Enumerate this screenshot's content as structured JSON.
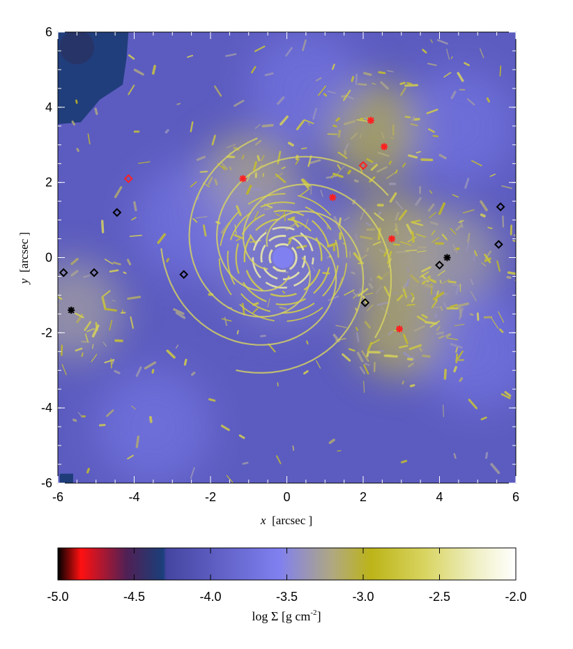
{
  "chart_data": {
    "type": "heatmap",
    "title": "",
    "xlabel": {
      "var": "x",
      "unit": "[arcsec ]"
    },
    "ylabel": {
      "var": "y",
      "unit": "[arcsec ]"
    },
    "xlim": [
      -6,
      6
    ],
    "ylim": [
      -6,
      6
    ],
    "xticks": [
      "-6",
      "-4",
      "-2",
      "0",
      "2",
      "4",
      "6"
    ],
    "yticks": [
      "6",
      "4",
      "2",
      "0",
      "-2",
      "-4",
      "-6"
    ],
    "colorbar": {
      "label": "log Σ [g cm",
      "label_exp": "-2",
      "label_close": "]",
      "range": [
        -5.0,
        -2.0
      ],
      "ticks": [
        "-5.0",
        "-4.5",
        "-4.0",
        "-3.5",
        "-3.0",
        "-2.5",
        "-2.0"
      ],
      "stops": [
        {
          "v": -5.0,
          "color": "#000000"
        },
        {
          "v": -4.85,
          "color": "#ff1010"
        },
        {
          "v": -4.55,
          "color": "#502055"
        },
        {
          "v": -4.31,
          "color": "#1a3f7a"
        },
        {
          "v": -4.29,
          "color": "#4444a0"
        },
        {
          "v": -3.55,
          "color": "#8080f0"
        },
        {
          "v": -3.2,
          "color": "#b0a880"
        },
        {
          "v": -2.95,
          "color": "#bcb418"
        },
        {
          "v": -2.6,
          "color": "#d8d460"
        },
        {
          "v": -2.25,
          "color": "#f0f0c8"
        },
        {
          "v": -2.0,
          "color": "#ffffff"
        }
      ]
    },
    "markers": [
      {
        "kind": "red-asterisk",
        "x": 2.2,
        "y": 3.65
      },
      {
        "kind": "red-asterisk",
        "x": 2.55,
        "y": 2.95
      },
      {
        "kind": "red-asterisk",
        "x": -1.15,
        "y": 2.1
      },
      {
        "kind": "red-asterisk",
        "x": 1.2,
        "y": 1.6
      },
      {
        "kind": "red-asterisk",
        "x": 2.75,
        "y": 0.5
      },
      {
        "kind": "red-asterisk",
        "x": 2.95,
        "y": -1.9
      },
      {
        "kind": "red-diamond",
        "x": -4.15,
        "y": 2.1
      },
      {
        "kind": "red-diamond",
        "x": 2.0,
        "y": 2.45
      },
      {
        "kind": "black-asterisk",
        "x": 4.2,
        "y": 0.0
      },
      {
        "kind": "black-asterisk",
        "x": -5.65,
        "y": -1.4
      },
      {
        "kind": "black-diamond",
        "x": -4.45,
        "y": 1.2
      },
      {
        "kind": "black-diamond",
        "x": -5.85,
        "y": -0.4
      },
      {
        "kind": "black-diamond",
        "x": -5.05,
        "y": -0.4
      },
      {
        "kind": "black-diamond",
        "x": -2.7,
        "y": -0.45
      },
      {
        "kind": "black-diamond",
        "x": 2.05,
        "y": -1.2
      },
      {
        "kind": "black-diamond",
        "x": 4.0,
        "y": -0.2
      },
      {
        "kind": "black-diamond",
        "x": 5.6,
        "y": 1.35
      },
      {
        "kind": "black-diamond",
        "x": 5.55,
        "y": 0.35
      }
    ],
    "field": {
      "background": -3.75,
      "spiral_center": [
        -0.1,
        0.0
      ],
      "features": [
        {
          "kind": "low-density-region",
          "x": -4.5,
          "y": 4.8,
          "value": -4.6
        },
        {
          "kind": "dense-clump",
          "x": 2.3,
          "y": 3.4,
          "value": -3.05
        },
        {
          "kind": "dense-clump",
          "x": -1.0,
          "y": 2.0,
          "value": -3.2
        },
        {
          "kind": "dense-clump",
          "x": 2.8,
          "y": 0.4,
          "value": -3.1
        },
        {
          "kind": "dense-clump",
          "x": 3.0,
          "y": -1.9,
          "value": -3.1
        },
        {
          "kind": "dense-clump",
          "x": -5.6,
          "y": -1.4,
          "value": -3.3
        },
        {
          "kind": "dense-clump",
          "x": 4.3,
          "y": 0.0,
          "value": -3.3
        }
      ]
    }
  }
}
